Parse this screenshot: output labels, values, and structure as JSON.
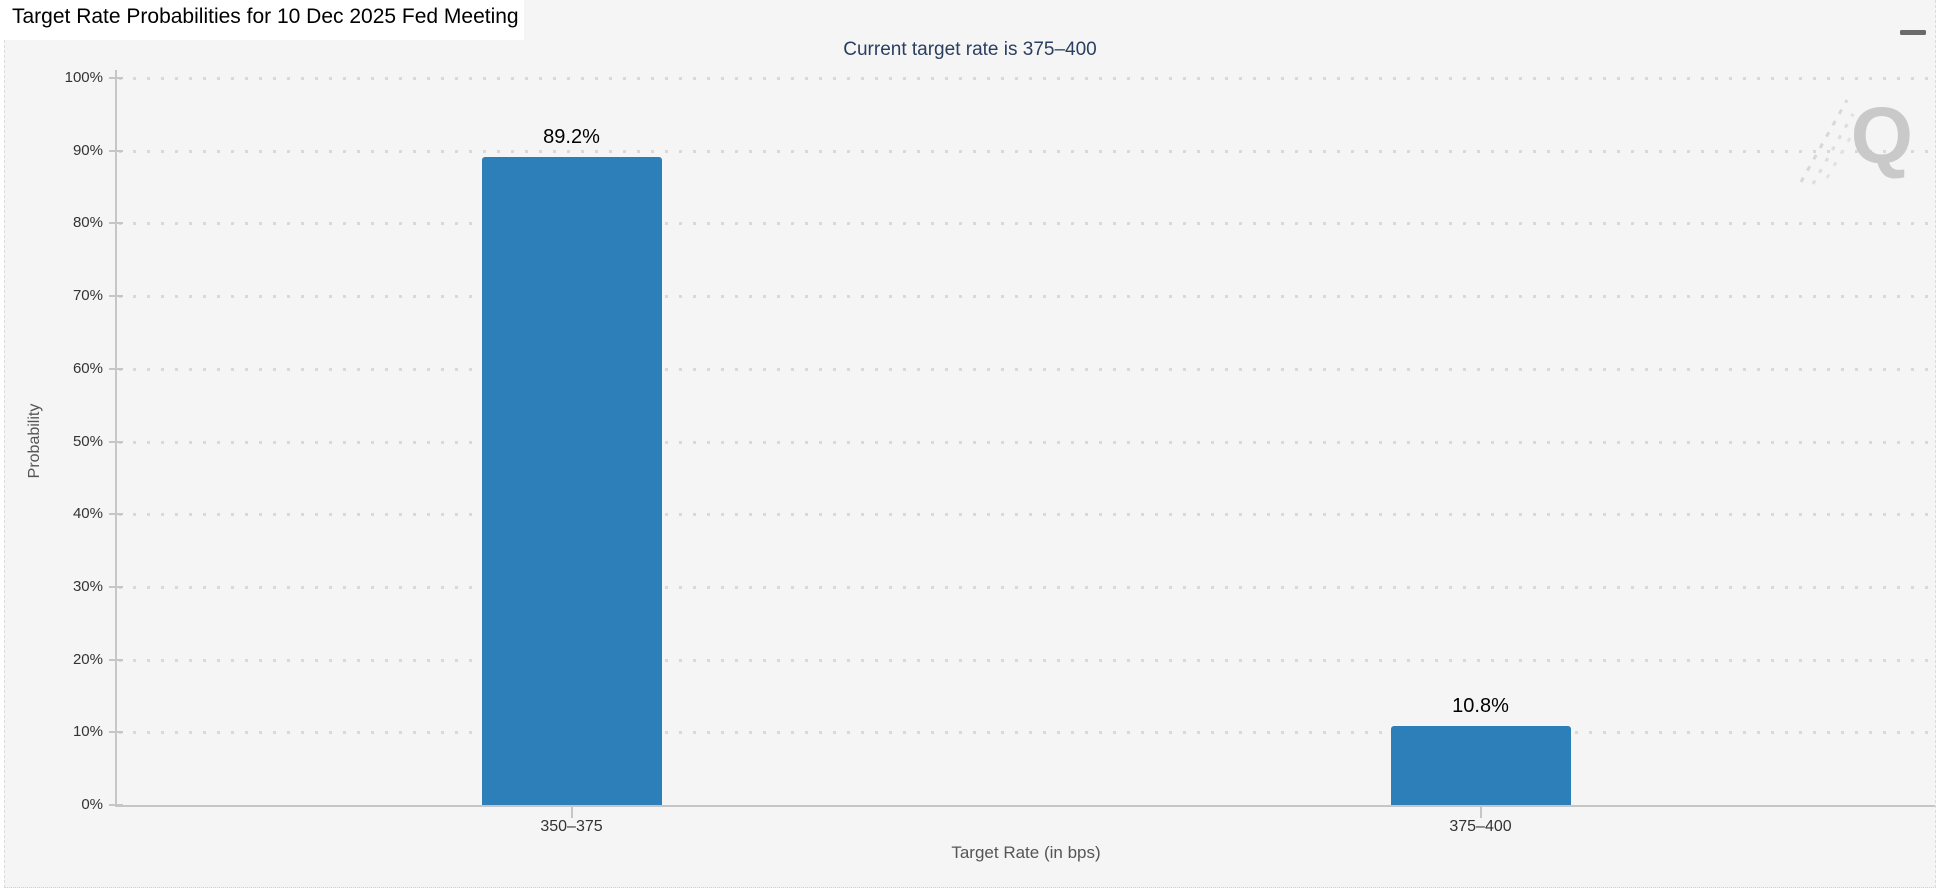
{
  "header": {
    "title": "Target Rate Probabilities for 10 Dec 2025 Fed Meeting"
  },
  "chart_data": {
    "type": "bar",
    "title": "Target Rate Probabilities for 10 Dec 2025 Fed Meeting",
    "subtitle": "Current target rate is 375–400",
    "categories": [
      "350–375",
      "375–400"
    ],
    "values": [
      89.2,
      10.8
    ],
    "value_labels": [
      "89.2%",
      "10.8%"
    ],
    "xlabel": "Target Rate (in bps)",
    "ylabel": "Probability",
    "ylim": [
      0,
      100
    ],
    "ytick_step": 10,
    "ytick_labels": [
      "0%",
      "10%",
      "20%",
      "30%",
      "40%",
      "50%",
      "60%",
      "70%",
      "80%",
      "90%",
      "100%"
    ],
    "grid": "horizontal-dotted",
    "legend": "none",
    "bar_color": "#2c7fb8",
    "watermark_letter": "Q"
  },
  "colors": {
    "page_bg": "#ffffff",
    "chart_bg": "#f5f5f5",
    "bar": "#2c7fb8",
    "title_text": "#000000",
    "subtitle_text": "#2a3f5f",
    "tick_label": "#333333",
    "axis_title": "#555555",
    "axis_line": "#c6c6c6",
    "grid_dot": "#d9d9d9",
    "menu_icon": "#6a6a6a",
    "watermark": "#c9c9c9"
  }
}
